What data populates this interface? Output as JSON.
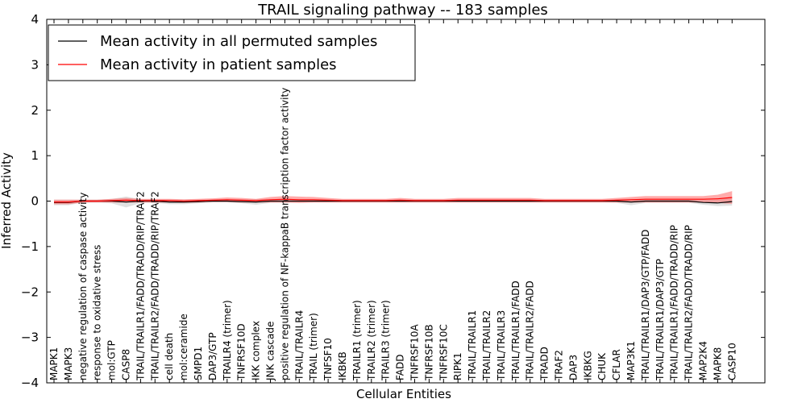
{
  "chart_data": {
    "type": "line",
    "title": "TRAIL signaling pathway -- 183 samples",
    "xlabel": "Cellular Entities",
    "ylabel": "Inferred Activity",
    "ylim": [
      -4,
      4
    ],
    "yticks": [
      -4,
      -3,
      -2,
      -1,
      0,
      1,
      2,
      3,
      4
    ],
    "ytick_labels": [
      "−4",
      "−3",
      "−2",
      "−1",
      "0",
      "1",
      "2",
      "3",
      "4"
    ],
    "grid": false,
    "legend": {
      "position": "top-left"
    },
    "colors": {
      "permuted": "#000000",
      "patient": "#ff0000",
      "permuted_band": "#bbbbbb",
      "patient_band": "#ff6666"
    },
    "categories": [
      "MAPK1",
      "MAPK3",
      "negative regulation of caspase activity",
      "response to oxidative stress",
      "mol:GTP",
      "CASP8",
      "TRAIL/TRAILR1/FADD/TRADD/RIP/TRAF2",
      "TRAIL/TRAILR2/FADD/TRADD/RIP/TRAF2",
      "cell death",
      "mol:ceramide",
      "SMPD1",
      "DAP3/GTP",
      "TRAILR4 (trimer)",
      "TNFRSF10D",
      "IKK complex",
      "JNK cascade",
      "positive regulation of NF-kappaB transcription factor activity",
      "TRAIL/TRAILR4",
      "TRAIL (trimer)",
      "TNFSF10",
      "IKBKB",
      "TRAILR1 (trimer)",
      "TRAILR2 (trimer)",
      "TRAILR3 (trimer)",
      "FADD",
      "TNFRSF10A",
      "TNFRSF10B",
      "TNFRSF10C",
      "RIPK1",
      "TRAIL/TRAILR1",
      "TRAIL/TRAILR2",
      "TRAIL/TRAILR3",
      "TRAIL/TRAILR1/FADD",
      "TRAIL/TRAILR2/FADD",
      "TRADD",
      "TRAF2",
      "DAP3",
      "IKBKG",
      "CHUK",
      "CFLAR",
      "MAP3K1",
      "TRAIL/TRAILR1/DAP3/GTP/FADD",
      "TRAIL/TRAILR1/DAP3/GTP",
      "TRAIL/TRAILR1/FADD/TRADD/RIP",
      "TRAIL/TRAILR2/FADD/TRADD/RIP",
      "MAP2K4",
      "MAPK8",
      "CASP10"
    ],
    "series": [
      {
        "name": "Mean activity in all permuted samples",
        "values": [
          -0.03,
          -0.03,
          0,
          0,
          0,
          -0.02,
          0,
          0,
          -0.02,
          -0.02,
          -0.01,
          0,
          0,
          -0.01,
          -0.02,
          0,
          0,
          0,
          0,
          0,
          0,
          0,
          0,
          0,
          0,
          0,
          0,
          0,
          0,
          0,
          0,
          0,
          0,
          0,
          0,
          0,
          0,
          0,
          0,
          0,
          -0.02,
          0,
          0,
          0,
          0,
          -0.03,
          -0.04,
          -0.01
        ],
        "band": [
          0.06,
          0.06,
          0.03,
          0.03,
          0.05,
          0.12,
          0.04,
          0.04,
          0.05,
          0.05,
          0.04,
          0.03,
          0.03,
          0.04,
          0.06,
          0.04,
          0.04,
          0.03,
          0.03,
          0.03,
          0.03,
          0.03,
          0.03,
          0.03,
          0.03,
          0.03,
          0.03,
          0.03,
          0.03,
          0.03,
          0.03,
          0.03,
          0.03,
          0.03,
          0.03,
          0.03,
          0.03,
          0.03,
          0.03,
          0.04,
          0.07,
          0.04,
          0.04,
          0.04,
          0.04,
          0.05,
          0.07,
          0.09
        ]
      },
      {
        "name": "Mean activity in patient samples",
        "values": [
          -0.02,
          -0.02,
          0,
          0,
          0.01,
          0.02,
          0.01,
          0.01,
          0.01,
          0,
          0.01,
          0.02,
          0.03,
          0.02,
          0.01,
          0.03,
          0.04,
          0.03,
          0.03,
          0.02,
          0.01,
          0.01,
          0.01,
          0.01,
          0.02,
          0.01,
          0.01,
          0.01,
          0.02,
          0.02,
          0.02,
          0.02,
          0.02,
          0.02,
          0.01,
          0.01,
          0.01,
          0.01,
          0.01,
          0.02,
          0.03,
          0.04,
          0.04,
          0.04,
          0.04,
          0.04,
          0.05,
          0.08
        ],
        "band": [
          0.05,
          0.05,
          0.03,
          0.03,
          0.04,
          0.05,
          0.04,
          0.04,
          0.04,
          0.04,
          0.04,
          0.04,
          0.05,
          0.05,
          0.04,
          0.06,
          0.07,
          0.07,
          0.06,
          0.05,
          0.04,
          0.04,
          0.04,
          0.04,
          0.05,
          0.04,
          0.04,
          0.04,
          0.05,
          0.05,
          0.05,
          0.05,
          0.05,
          0.05,
          0.04,
          0.04,
          0.04,
          0.04,
          0.04,
          0.05,
          0.06,
          0.07,
          0.07,
          0.07,
          0.07,
          0.07,
          0.09,
          0.14
        ]
      }
    ]
  }
}
